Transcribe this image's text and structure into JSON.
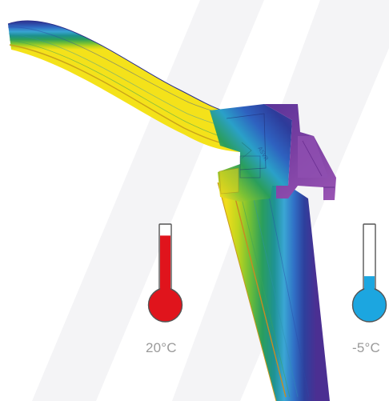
{
  "diagram": {
    "type": "thermal-isotherm-section",
    "isotherm_colors": [
      "#f2dc1a",
      "#c7d61b",
      "#7cc234",
      "#2ea15a",
      "#1c8f86",
      "#36a2cf",
      "#2f64c1",
      "#2d3b9a",
      "#3b2a8c",
      "#6c3aa3",
      "#8d47ad"
    ],
    "frame_color": "#7a3f9f",
    "frame_accent": "#8d4fb0",
    "watermark_color": "#f3f3f5"
  },
  "thermometers": {
    "warm": {
      "label": "20°C",
      "fill_fraction": 0.85,
      "color": "#e0141c"
    },
    "cold": {
      "label": "-5°C",
      "fill_fraction": 0.28,
      "color": "#1ca6e0"
    }
  }
}
